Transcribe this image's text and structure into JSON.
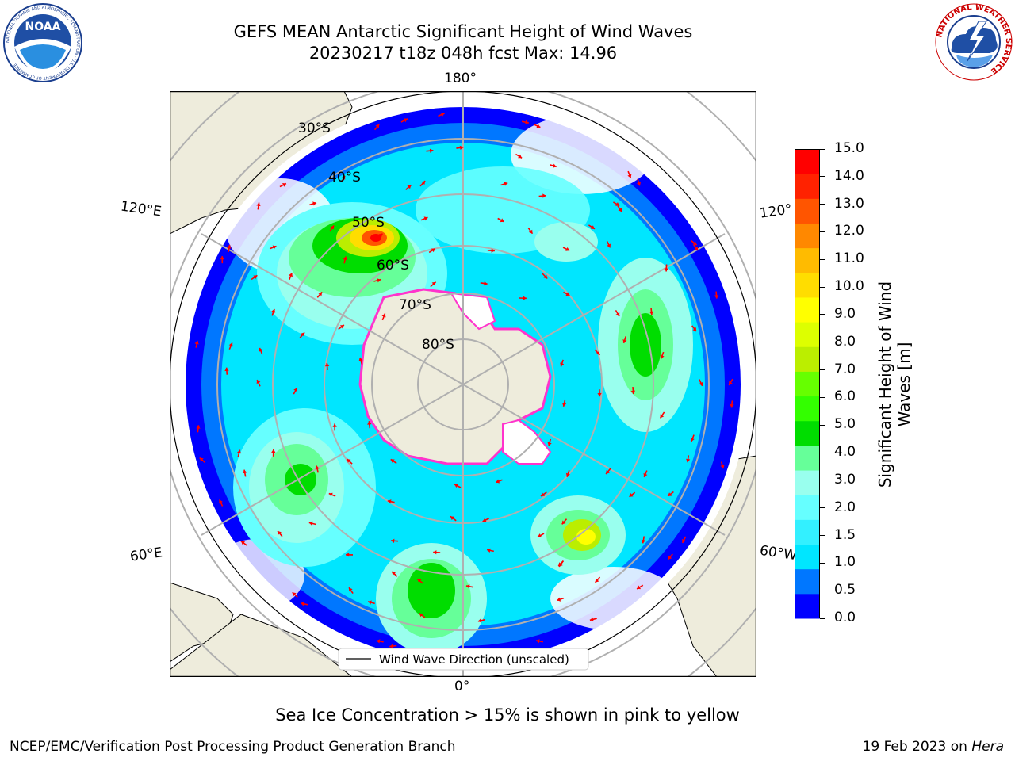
{
  "header": {
    "title_line1": "GEFS MEAN Antarctic Significant Height of Wind Waves",
    "title_line2": "20230217 t18z 048h fcst   Max: 14.96"
  },
  "logos": {
    "left": "NOAA",
    "left_ring_text": "NATIONAL OCEANIC AND ATMOSPHERIC ADMINISTRATION · U.S. DEPARTMENT OF COMMERCE",
    "right_ring_text": "NATIONAL WEATHER SERVICE"
  },
  "map": {
    "lon_labels": {
      "top": "180°",
      "bottom": "0°",
      "left_upper": "120°E",
      "left_lower": "60°E",
      "right_upper": "120°",
      "right_lower": "60°W"
    },
    "lat_labels": [
      "30°S",
      "40°S",
      "50°S",
      "60°S",
      "70°S",
      "80°S"
    ],
    "legend_label": "Wind Wave Direction (unscaled)",
    "colors": {
      "land": "#eeecdc",
      "arrow": "#ff0000",
      "ice": "#ff33cc",
      "grid": "#b0b0b0"
    }
  },
  "colorbar": {
    "label_line1": "Significant Height of Wind",
    "label_line2": "Waves [m]",
    "ticks": [
      "15.0",
      "14.0",
      "13.0",
      "12.0",
      "11.0",
      "10.0",
      "9.0",
      "8.0",
      "7.0",
      "6.0",
      "5.0",
      "4.0",
      "3.0",
      "2.0",
      "1.5",
      "1.0",
      "0.5",
      "0.0"
    ],
    "colors_bottom_to_top": [
      "#0000ff",
      "#0077ff",
      "#00e6ff",
      "#33f0ff",
      "#66ffff",
      "#99ffee",
      "#66ff99",
      "#00dd00",
      "#33ff00",
      "#66ff00",
      "#bbee00",
      "#ddff00",
      "#ffff00",
      "#ffdd00",
      "#ffbb00",
      "#ff8800",
      "#ff5500",
      "#ff2200",
      "#ff0000"
    ]
  },
  "footer": {
    "note": "Sea Ice Concentration > 15% is shown in pink to yellow",
    "credit": "NCEP/EMC/Verification Post Processing Product Generation Branch",
    "date_prefix": "19 Feb 2023 on ",
    "date_machine": "Hera"
  }
}
